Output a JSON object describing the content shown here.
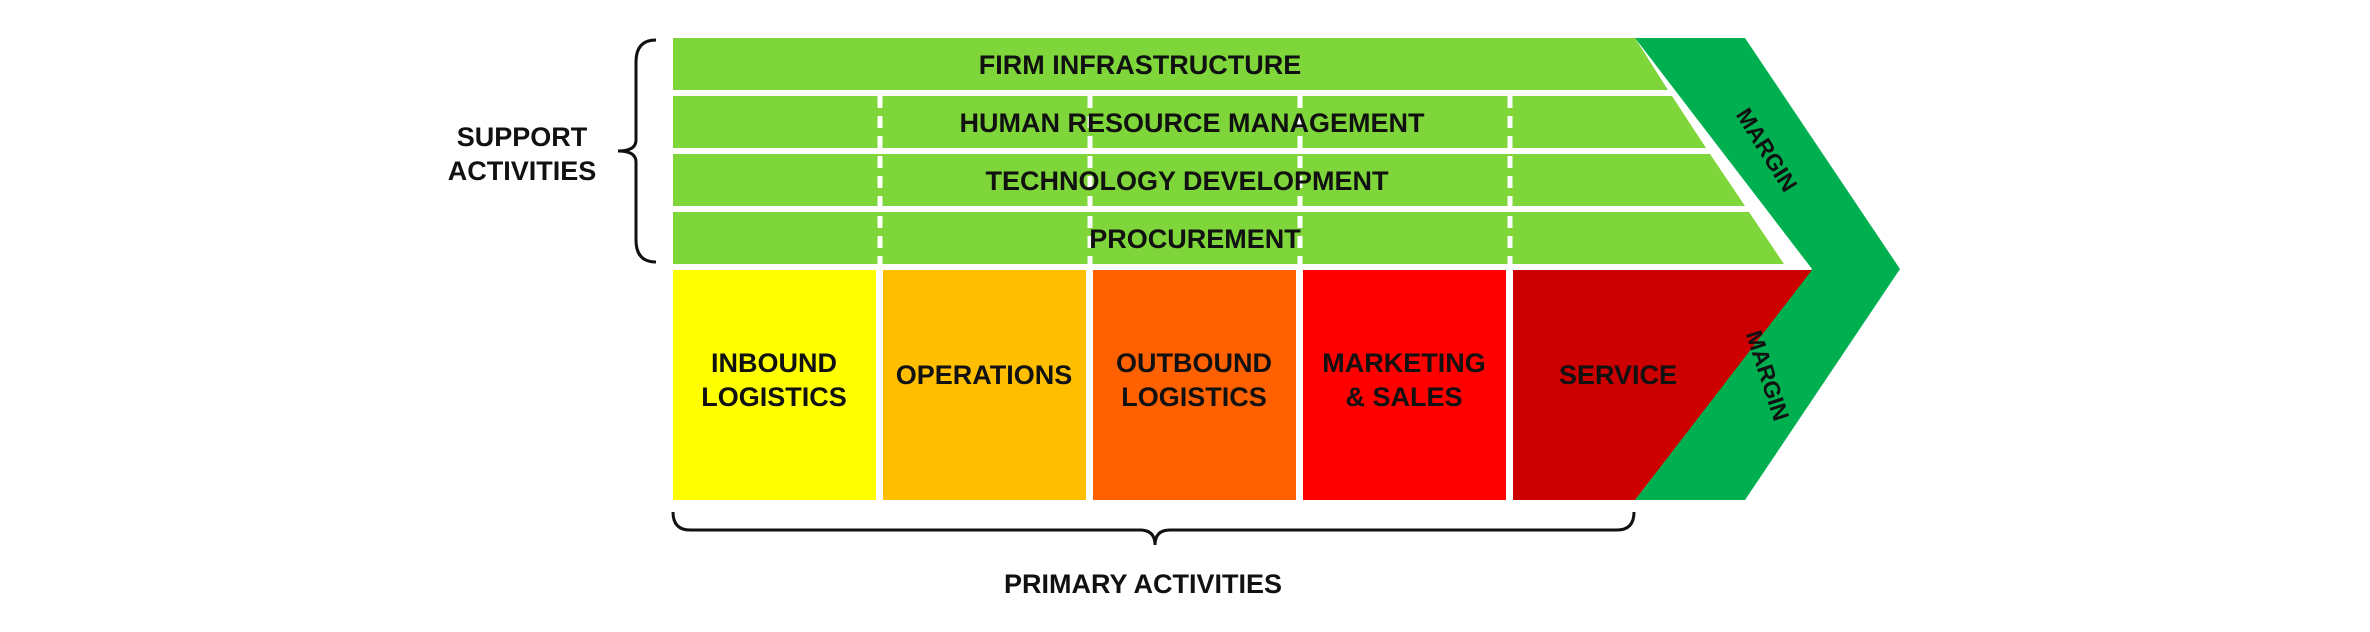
{
  "support": {
    "group_label_line1": "SUPPORT",
    "group_label_line2": "ACTIVITIES",
    "rows": {
      "firm_infrastructure": "FIRM INFRASTRUCTURE",
      "human_resource_management": "HUMAN RESOURCE MANAGEMENT",
      "technology_development": "TECHNOLOGY DEVELOPMENT",
      "procurement": "PROCUREMENT"
    }
  },
  "primary": {
    "group_label": "PRIMARY ACTIVITIES",
    "inbound_logistics": {
      "line1": "INBOUND",
      "line2": "LOGISTICS"
    },
    "operations": {
      "line1": "OPERATIONS"
    },
    "outbound_logistics": {
      "line1": "OUTBOUND",
      "line2": "LOGISTICS"
    },
    "marketing_sales": {
      "line1": "MARKETING",
      "line2": "& SALES"
    },
    "service": {
      "line1": "SERVICE"
    }
  },
  "margin": {
    "top_label": "MARGIN",
    "bottom_label": "MARGIN"
  },
  "colors": {
    "support_green": "#7ed63a",
    "margin_green": "#00b050",
    "inbound_yellow": "#ffff00",
    "operations_amber": "#ffbf00",
    "outbound_orange": "#ff6000",
    "marketing_red": "#ff0000",
    "service_darkred": "#cc0000"
  }
}
